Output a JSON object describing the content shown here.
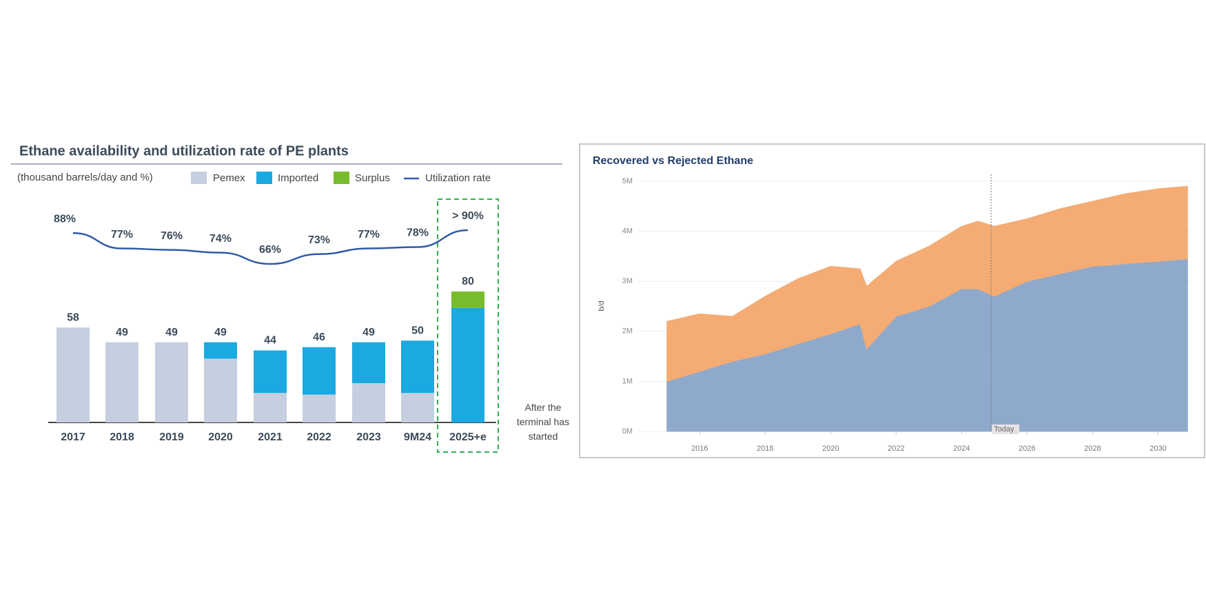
{
  "chart_data": [
    {
      "type": "bar",
      "title": "Ethane availability and utilization rate of PE plants",
      "subtitle": "(thousand barrels/day and %)",
      "categories": [
        "2017",
        "2018",
        "2019",
        "2020",
        "2021",
        "2022",
        "2023",
        "9M24",
        "2025+e"
      ],
      "series": [
        {
          "name": "Pemex",
          "color": "#c5cfe0",
          "values": [
            58,
            49,
            49,
            39,
            18,
            17,
            24,
            18,
            0
          ]
        },
        {
          "name": "Imported",
          "color": "#1aa9e0",
          "values": [
            0,
            0,
            0,
            10,
            26,
            29,
            25,
            32,
            70
          ]
        },
        {
          "name": "Surplus",
          "color": "#77bc2c",
          "values": [
            0,
            0,
            0,
            0,
            0,
            0,
            0,
            0,
            10
          ]
        },
        {
          "name": "Utilization rate",
          "type": "line",
          "color": "#2f5aa8",
          "values": [
            88,
            77,
            76,
            74,
            66,
            73,
            77,
            78,
            90
          ],
          "value_labels": [
            "88%",
            "77%",
            "76%",
            "74%",
            "66%",
            "73%",
            "77%",
            "78%",
            "> 90%"
          ]
        }
      ],
      "totals": [
        58,
        49,
        49,
        49,
        44,
        46,
        49,
        50,
        80
      ],
      "annotation": "After the terminal has started"
    },
    {
      "type": "area",
      "title": "Recovered vs Rejected Ethane",
      "ylabel": "b/d",
      "x": [
        2015,
        2016,
        2017,
        2018,
        2019,
        2020,
        2020.9,
        2021.1,
        2022,
        2023,
        2024,
        2024.5,
        2025,
        2026,
        2027,
        2028,
        2029,
        2030,
        2030.9
      ],
      "series": [
        {
          "color": "#8fa9cc",
          "values": [
            1.0,
            1.2,
            1.4,
            1.55,
            1.75,
            1.95,
            2.15,
            1.65,
            2.3,
            2.5,
            2.85,
            2.85,
            2.7,
            3.0,
            3.15,
            3.3,
            3.35,
            3.4,
            3.45
          ]
        },
        {
          "color": "#f4ac74",
          "values": [
            1.2,
            1.15,
            0.9,
            1.15,
            1.3,
            1.35,
            1.1,
            1.25,
            1.1,
            1.2,
            1.25,
            1.35,
            1.4,
            1.25,
            1.3,
            1.3,
            1.4,
            1.45,
            1.45
          ]
        }
      ],
      "xlim": [
        2014.1,
        2031
      ],
      "xticks": [
        2016,
        2018,
        2020,
        2022,
        2024,
        2026,
        2028,
        2030
      ],
      "ylim": [
        0,
        5
      ],
      "yticks": [
        {
          "value": 0,
          "label": "0M"
        },
        {
          "value": 1,
          "label": "1M"
        },
        {
          "value": 2,
          "label": "2M"
        },
        {
          "value": 3,
          "label": "3M"
        },
        {
          "value": 4,
          "label": "4M"
        },
        {
          "value": 5,
          "label": "5M"
        }
      ],
      "grid": true,
      "today": {
        "x": 2024.9,
        "label": "Today"
      }
    }
  ]
}
